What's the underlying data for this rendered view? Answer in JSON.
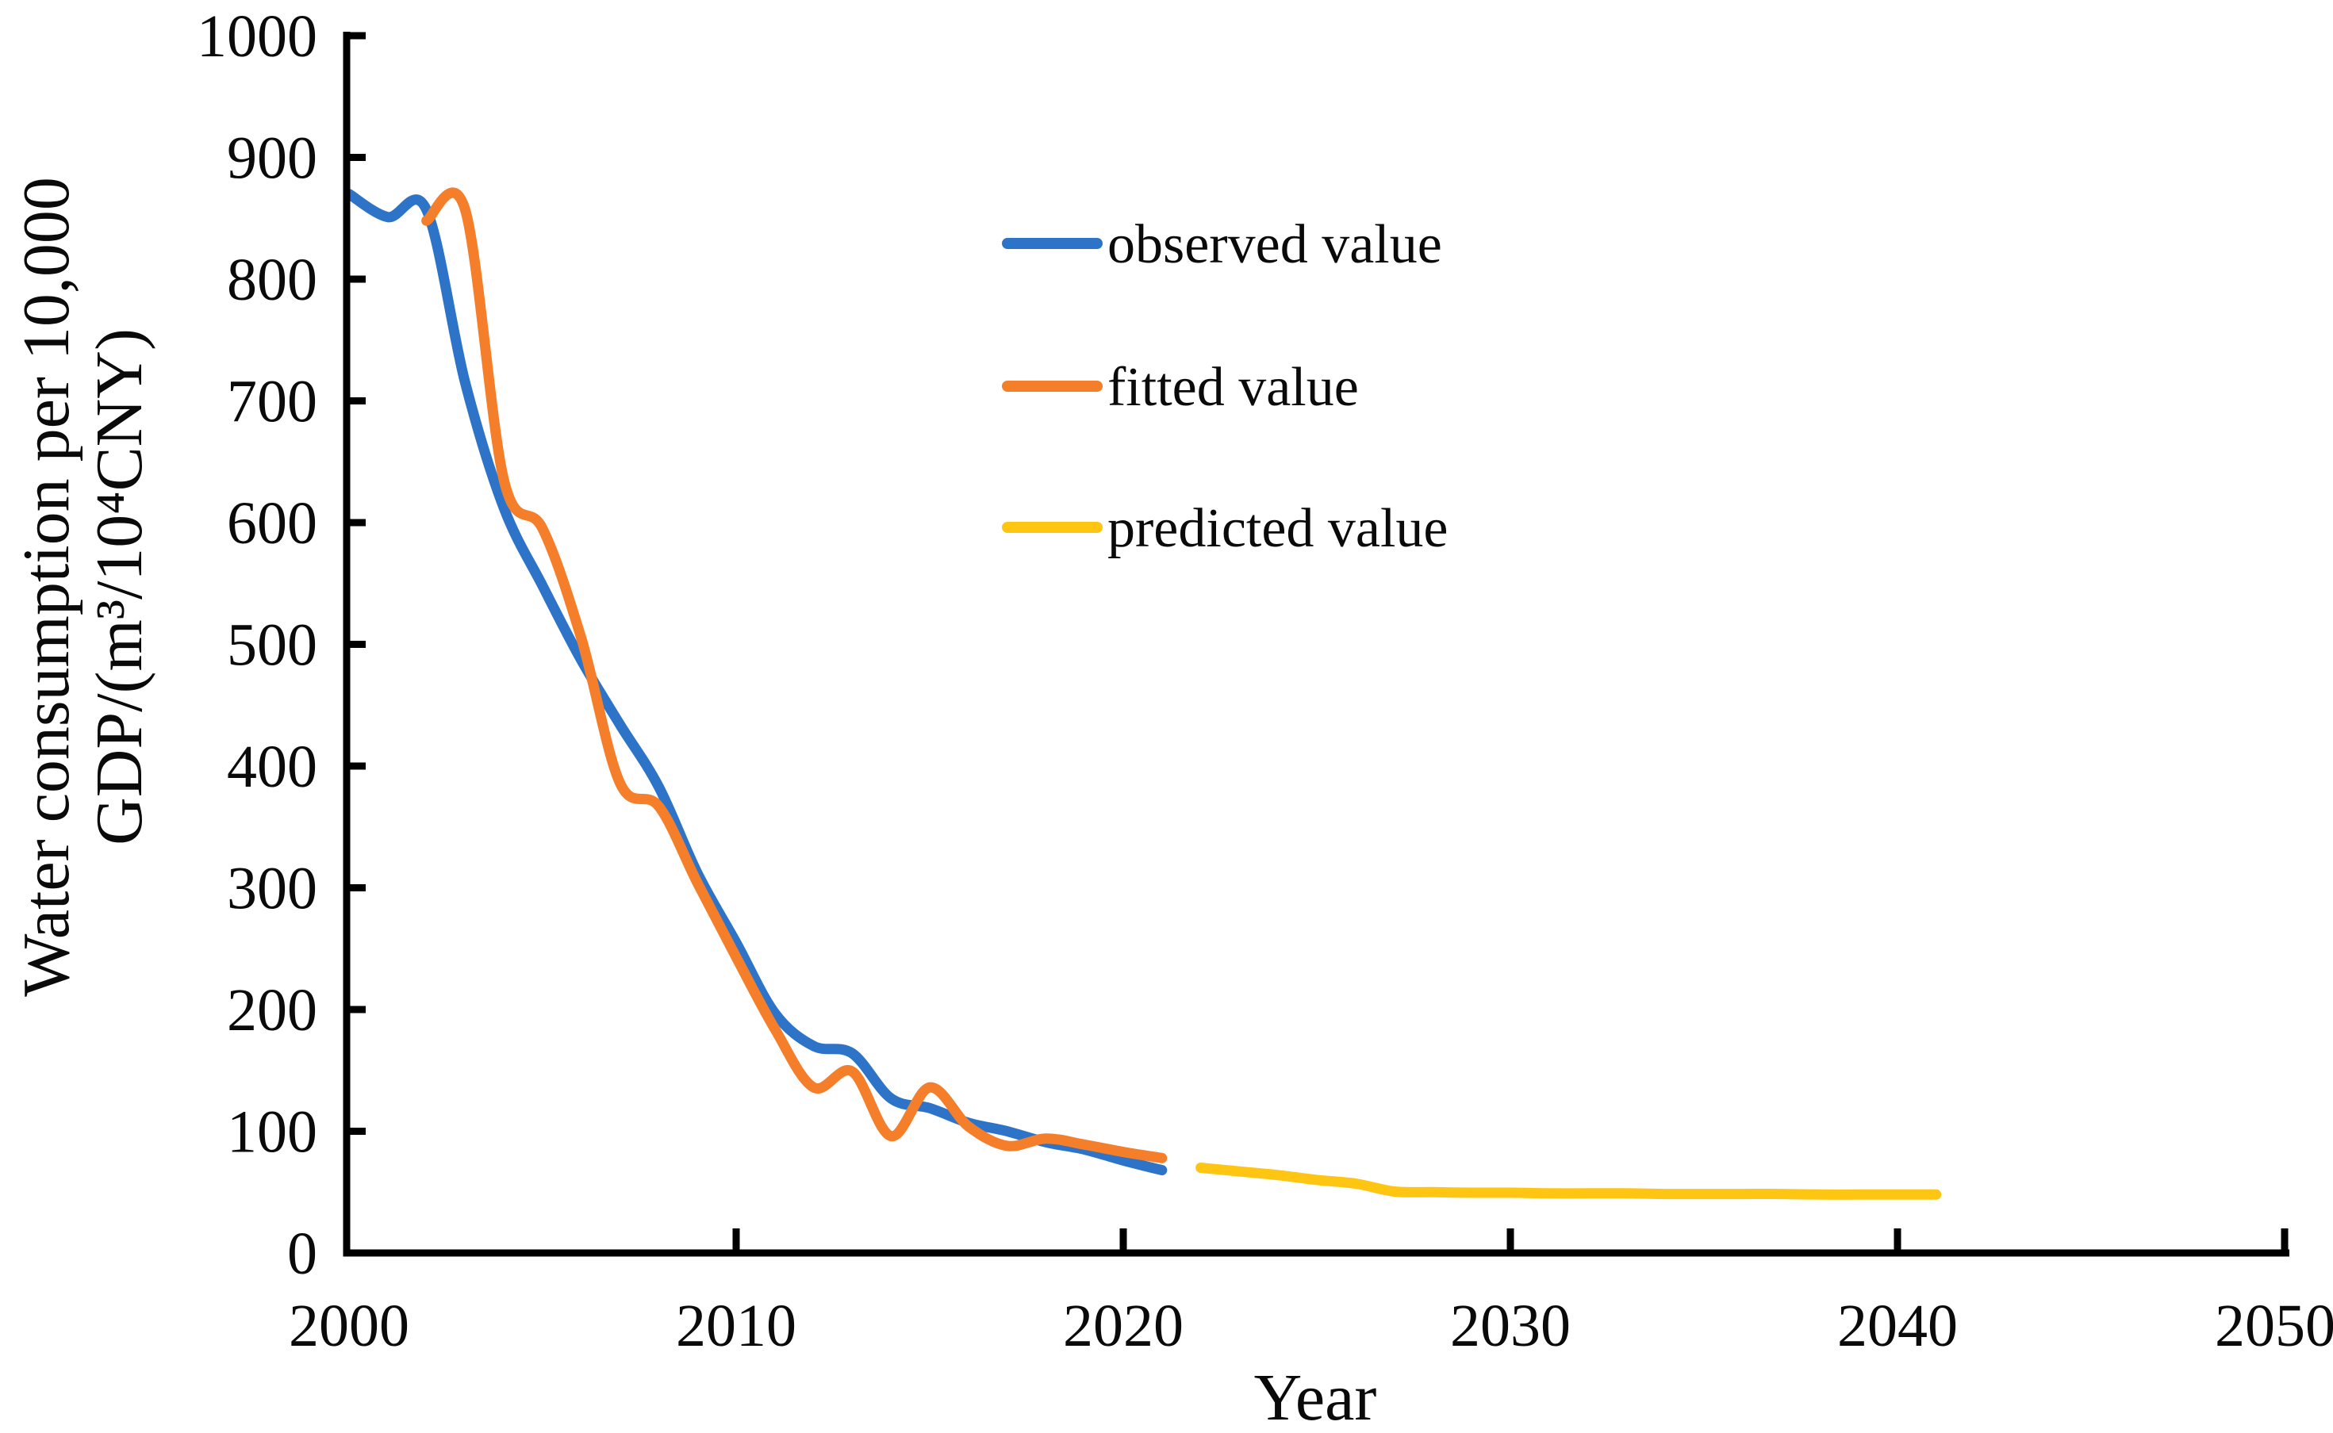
{
  "page": {
    "background": "#ffffff"
  },
  "chart_data": {
    "type": "line",
    "title": "",
    "xlabel": "Year",
    "ylabel_line1": "Water consumption per 10,000",
    "ylabel_line2": "GDP/(m³/10⁴CNY)",
    "xlim": [
      2000,
      2050
    ],
    "ylim": [
      0,
      1000
    ],
    "x_ticks": [
      2000,
      2010,
      2020,
      2030,
      2040,
      2050
    ],
    "y_ticks": [
      0,
      100,
      200,
      300,
      400,
      500,
      600,
      700,
      800,
      900,
      1000
    ],
    "grid": false,
    "axis_color": "#000000",
    "legend_position": "inside upper area, left-of-center, vertical stack",
    "series": [
      {
        "name": "observed value",
        "color": "#2D74C8",
        "x": [
          2000,
          2001,
          2002,
          2003,
          2004,
          2005,
          2006,
          2007,
          2008,
          2009,
          2010,
          2011,
          2012,
          2013,
          2014,
          2015,
          2016,
          2017,
          2018,
          2019,
          2020,
          2021
        ],
        "y": [
          870,
          851,
          857,
          715,
          612,
          548,
          487,
          434,
          383,
          312,
          255,
          197,
          170,
          164,
          127,
          119,
          107,
          100,
          91,
          85,
          76,
          68
        ]
      },
      {
        "name": "fitted value",
        "color": "#F57E2A",
        "x": [
          2002,
          2003,
          2004,
          2005,
          2006,
          2007,
          2008,
          2009,
          2010,
          2011,
          2012,
          2013,
          2014,
          2015,
          2016,
          2017,
          2018,
          2019,
          2020,
          2021
        ],
        "y": [
          848,
          857,
          635,
          595,
          505,
          386,
          367,
          304,
          243,
          184,
          136,
          149,
          96,
          136,
          104,
          88,
          94,
          89,
          83,
          78
        ]
      },
      {
        "name": "predicted value",
        "color": "#FFC513",
        "x": [
          2022,
          2023,
          2024,
          2025,
          2026,
          2027,
          2028,
          2029,
          2030,
          2031,
          2032,
          2033,
          2034,
          2035,
          2036,
          2037,
          2038,
          2039,
          2040,
          2041
        ],
        "y": [
          70,
          67,
          64,
          60,
          57,
          50.5,
          50,
          49.5,
          49.5,
          49,
          49,
          49,
          48.5,
          48.5,
          48.5,
          48.5,
          48,
          48,
          48,
          48
        ]
      }
    ]
  }
}
